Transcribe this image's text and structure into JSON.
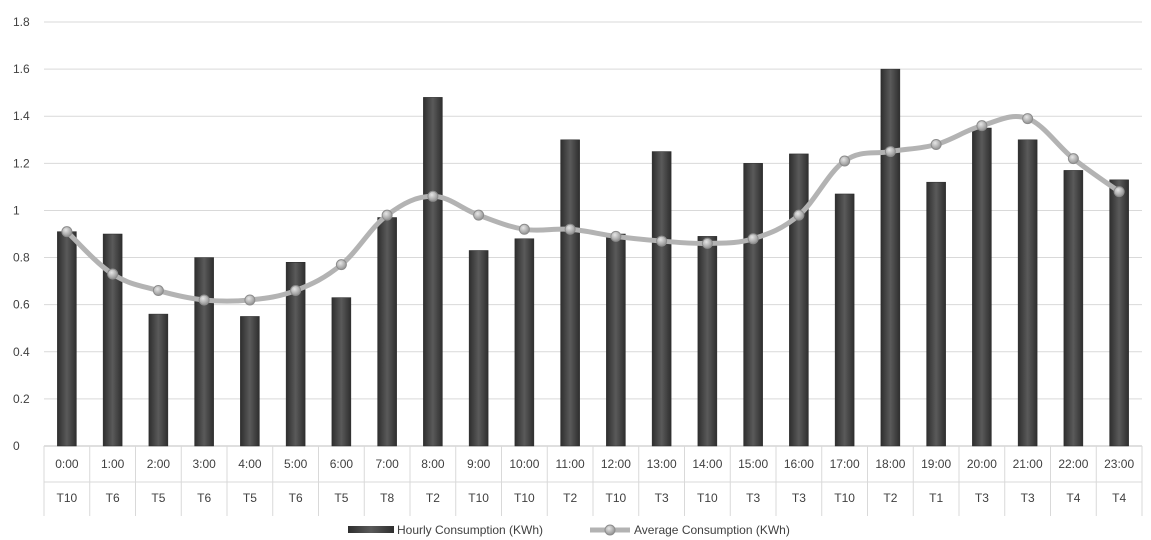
{
  "chart_data": {
    "type": "bar",
    "categories": [
      "0:00",
      "1:00",
      "2:00",
      "3:00",
      "4:00",
      "5:00",
      "6:00",
      "7:00",
      "8:00",
      "9:00",
      "10:00",
      "11:00",
      "12:00",
      "13:00",
      "14:00",
      "15:00",
      "16:00",
      "17:00",
      "18:00",
      "19:00",
      "20:00",
      "21:00",
      "22:00",
      "23:00"
    ],
    "sub_categories": [
      "T10",
      "T6",
      "T5",
      "T6",
      "T5",
      "T6",
      "T5",
      "T8",
      "T2",
      "T10",
      "T10",
      "T2",
      "T10",
      "T3",
      "T10",
      "T3",
      "T3",
      "T10",
      "T2",
      "T1",
      "T3",
      "T3",
      "T4",
      "T4"
    ],
    "series": [
      {
        "name": "Hourly Consumption (KWh)",
        "type": "bar",
        "color": "#4d4d4d",
        "values": [
          0.91,
          0.9,
          0.56,
          0.8,
          0.55,
          0.78,
          0.63,
          0.97,
          1.48,
          0.83,
          0.88,
          1.3,
          0.9,
          1.25,
          0.89,
          1.2,
          1.24,
          1.07,
          1.6,
          1.12,
          1.35,
          1.3,
          1.17,
          1.13
        ]
      },
      {
        "name": "Average Consumption (KWh)",
        "type": "line",
        "color": "#b3b3b3",
        "values": [
          0.91,
          0.73,
          0.66,
          0.62,
          0.62,
          0.66,
          0.77,
          0.98,
          1.06,
          0.98,
          0.92,
          0.92,
          0.89,
          0.87,
          0.86,
          0.88,
          0.98,
          1.21,
          1.25,
          1.28,
          1.36,
          1.39,
          1.22,
          1.08
        ]
      }
    ],
    "y_ticks": [
      "0",
      "0.2",
      "0.4",
      "0.6",
      "0.8",
      "1",
      "1.2",
      "1.4",
      "1.6",
      "1.8"
    ],
    "ylim": [
      0,
      1.8
    ],
    "grid": true,
    "legend_position": "bottom",
    "title": "",
    "xlabel": "",
    "ylabel": ""
  }
}
